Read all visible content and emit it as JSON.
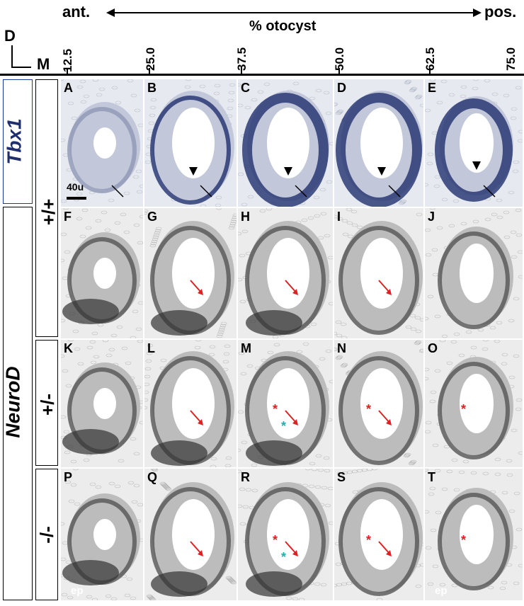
{
  "header": {
    "axis_dorsal": "D",
    "axis_medial": "M",
    "anterior": "ant.",
    "posterior": "pos.",
    "otocyst_label": "% otocyst",
    "ticks": [
      "12.5",
      "25.0",
      "37.5",
      "50.0",
      "62.5",
      "75.0"
    ]
  },
  "rows": {
    "tbx1_label": "Tbx1",
    "neurod_label": "NeuroD",
    "wt": "+/+",
    "het": "+/-",
    "ko": "-/-"
  },
  "panels": {
    "row1": [
      "A",
      "B",
      "C",
      "D",
      "E"
    ],
    "row2": [
      "F",
      "G",
      "H",
      "I",
      "J"
    ],
    "row3": [
      "K",
      "L",
      "M",
      "N",
      "O"
    ],
    "row4": [
      "P",
      "Q",
      "R",
      "S",
      "T"
    ]
  },
  "scale_bar": "40u",
  "ep_label": "ep",
  "colors": {
    "tbx1_blue": "#1f2f6e",
    "arrow_red": "#e02020",
    "star_cyan": "#20b0b0"
  }
}
